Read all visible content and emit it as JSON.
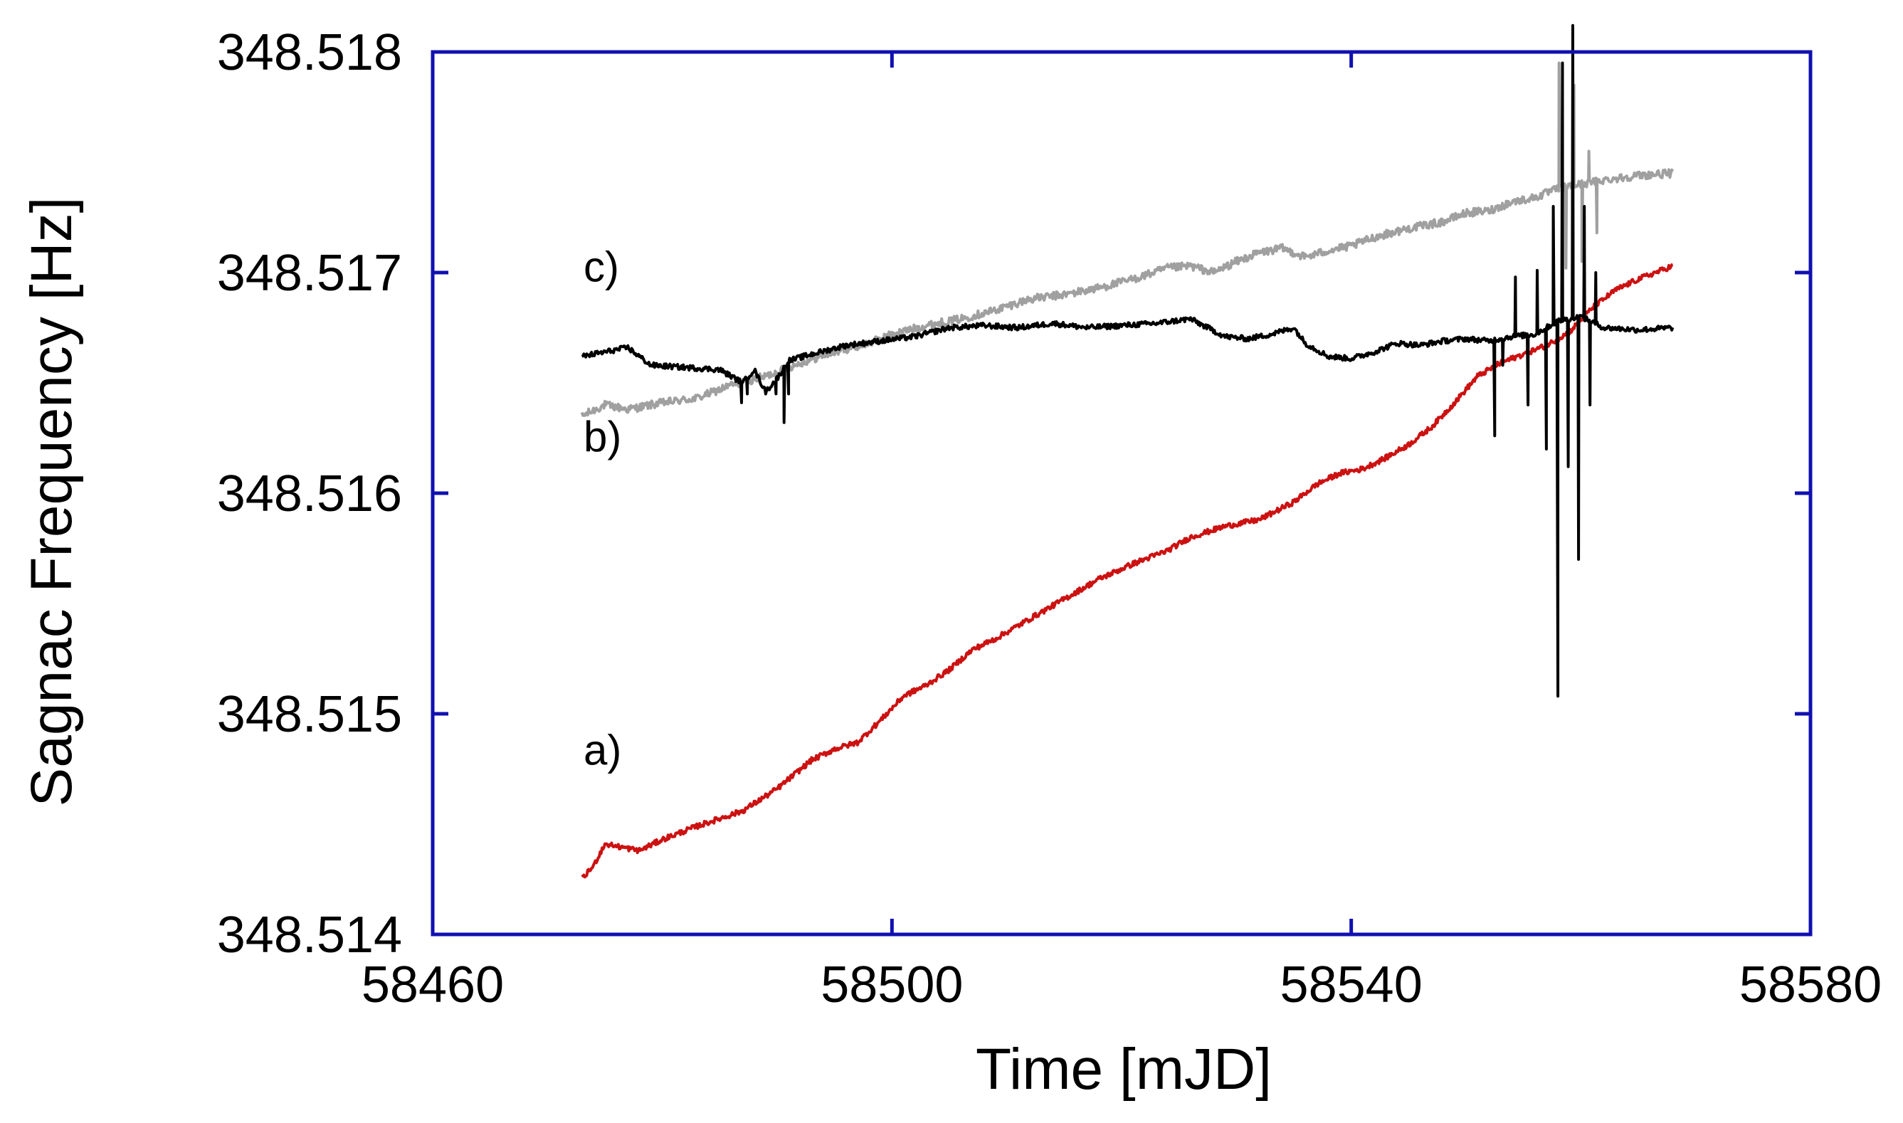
{
  "chart_data": {
    "type": "line",
    "title": "",
    "xlabel": "Time [mJD]",
    "ylabel": "Sagnac Frequency [Hz]",
    "xlim": [
      58460,
      58580
    ],
    "ylim": [
      348.514,
      348.518
    ],
    "xticks": [
      58460,
      58500,
      58540,
      58580
    ],
    "xtick_labels": [
      "58460",
      "58500",
      "58540",
      "58580"
    ],
    "yticks": [
      348.514,
      348.515,
      348.516,
      348.517,
      348.518
    ],
    "ytick_labels": [
      "348.514",
      "348.515",
      "348.516",
      "348.517",
      "348.518"
    ],
    "grid": false,
    "frame_color": "#1010b0",
    "annotations": [
      {
        "text": "a)",
        "x": 58475,
        "y": 348.51477
      },
      {
        "text": "b)",
        "x": 58475,
        "y": 348.51619
      },
      {
        "text": "c)",
        "x": 58475,
        "y": 348.51696
      }
    ],
    "series": [
      {
        "color": "#cc1111",
        "noise": 1.2e-05,
        "x": [
          58473,
          58474,
          58475,
          58476,
          58478,
          58480,
          58483,
          58487,
          58490,
          58493,
          58495,
          58497,
          58499,
          58501,
          58503,
          58505,
          58507,
          58509,
          58511,
          58513,
          58515,
          58518,
          58521,
          58524,
          58526,
          58529,
          58532,
          58535,
          58537,
          58539,
          58541,
          58543,
          58545,
          58547,
          58549,
          58551,
          58553,
          58555,
          58557,
          58559,
          58561,
          58563,
          58565,
          58568
        ],
        "y": [
          348.51425,
          348.51431,
          348.51441,
          348.5144,
          348.51438,
          348.51443,
          348.51449,
          348.51456,
          348.51466,
          348.51479,
          348.51484,
          348.51487,
          348.51497,
          348.51508,
          348.51513,
          348.5152,
          348.51529,
          348.51534,
          348.5154,
          348.51546,
          348.51552,
          348.51561,
          348.51568,
          348.51574,
          348.5158,
          348.51585,
          348.51588,
          348.51596,
          348.51604,
          348.51609,
          348.51611,
          348.51616,
          348.51622,
          348.5163,
          348.51641,
          348.51653,
          348.51659,
          348.51663,
          348.51667,
          348.51673,
          348.51684,
          348.51692,
          348.51697,
          348.51703
        ]
      },
      {
        "color": "#a0a0a0",
        "noise": 1.8e-05,
        "x": [
          58473,
          58475,
          58477,
          58480,
          58483,
          58486,
          58489,
          58492,
          58495,
          58498,
          58500,
          58503,
          58506,
          58509,
          58512,
          58515,
          58518,
          58521,
          58524,
          58526,
          58528,
          58530,
          58532,
          58534,
          58536,
          58538,
          58540,
          58542,
          58545,
          58548,
          58550,
          58552,
          58554,
          58556,
          58558,
          58560,
          58562,
          58565,
          58568
        ],
        "y": [
          348.51635,
          348.5164,
          348.51638,
          348.51641,
          348.51643,
          348.51649,
          348.51653,
          348.51659,
          348.51664,
          348.51668,
          348.51672,
          348.51676,
          348.51679,
          348.51683,
          348.51688,
          348.5169,
          348.51693,
          348.51697,
          348.51702,
          348.51703,
          348.517,
          348.51705,
          348.51709,
          348.51711,
          348.51707,
          348.5171,
          348.51712,
          348.51716,
          348.5172,
          348.51723,
          348.51727,
          348.51728,
          348.51732,
          348.51734,
          348.51738,
          348.5174,
          348.51742,
          348.51744,
          348.51745
        ]
      },
      {
        "color": "#000000",
        "noise": 1.2e-05,
        "x": [
          58473,
          58475,
          58477,
          58479,
          58482,
          58485,
          58487,
          58488,
          58489,
          58490,
          58491,
          58493,
          58496,
          58499,
          58502,
          58505,
          58508,
          58511,
          58514,
          58517,
          58520,
          58523,
          58526,
          58529,
          58531,
          58533,
          58535,
          58536,
          58538,
          58540,
          58542,
          58544,
          58546,
          58548,
          58550,
          58552,
          58554,
          58556,
          58558,
          58560,
          58562,
          58565,
          58568
        ],
        "y": [
          348.51662,
          348.51664,
          348.51666,
          348.51658,
          348.51657,
          348.51656,
          348.5165,
          348.51656,
          348.51646,
          348.51652,
          348.5166,
          348.51663,
          348.51667,
          348.51669,
          348.51671,
          348.51675,
          348.51676,
          348.51675,
          348.51677,
          348.51675,
          348.51676,
          348.51677,
          348.51679,
          348.51671,
          348.5167,
          348.51672,
          348.51675,
          348.51668,
          348.51662,
          348.51661,
          348.51664,
          348.51668,
          348.51667,
          348.51669,
          348.5167,
          348.51669,
          348.51671,
          348.51672,
          348.51678,
          348.5168,
          348.51675,
          348.51674,
          348.51675
        ]
      }
    ],
    "spikes": [
      {
        "series": 2,
        "x": 58486.9,
        "y": 348.51641
      },
      {
        "series": 2,
        "x": 58487.4,
        "y": 348.51645
      },
      {
        "series": 2,
        "x": 58489.9,
        "y": 348.51645
      },
      {
        "series": 2,
        "x": 58490.6,
        "y": 348.51632
      },
      {
        "series": 2,
        "x": 58491.0,
        "y": 348.51645
      },
      {
        "series": 2,
        "x": 58552.5,
        "y": 348.51626
      },
      {
        "series": 2,
        "x": 58553.2,
        "y": 348.51658
      },
      {
        "series": 2,
        "x": 58554.3,
        "y": 348.51698
      },
      {
        "series": 2,
        "x": 58555.4,
        "y": 348.5164
      },
      {
        "series": 2,
        "x": 58556.2,
        "y": 348.51701
      },
      {
        "series": 2,
        "x": 58557.0,
        "y": 348.5162
      },
      {
        "series": 2,
        "x": 58557.6,
        "y": 348.5173
      },
      {
        "series": 2,
        "x": 58558.0,
        "y": 348.51508
      },
      {
        "series": 2,
        "x": 58558.4,
        "y": 348.51795
      },
      {
        "series": 2,
        "x": 58558.9,
        "y": 348.51612
      },
      {
        "series": 2,
        "x": 58559.3,
        "y": 348.51812
      },
      {
        "series": 2,
        "x": 58559.8,
        "y": 348.5157
      },
      {
        "series": 2,
        "x": 58560.3,
        "y": 348.5173
      },
      {
        "series": 2,
        "x": 58560.8,
        "y": 348.5164
      },
      {
        "series": 2,
        "x": 58561.3,
        "y": 348.517
      },
      {
        "series": 1,
        "x": 58558.1,
        "y": 348.51795
      },
      {
        "series": 1,
        "x": 58558.7,
        "y": 348.51702
      },
      {
        "series": 1,
        "x": 58559.4,
        "y": 348.51785
      },
      {
        "series": 1,
        "x": 58560.1,
        "y": 348.51705
      },
      {
        "series": 1,
        "x": 58560.7,
        "y": 348.51755
      },
      {
        "series": 1,
        "x": 58561.4,
        "y": 348.51718
      }
    ]
  }
}
